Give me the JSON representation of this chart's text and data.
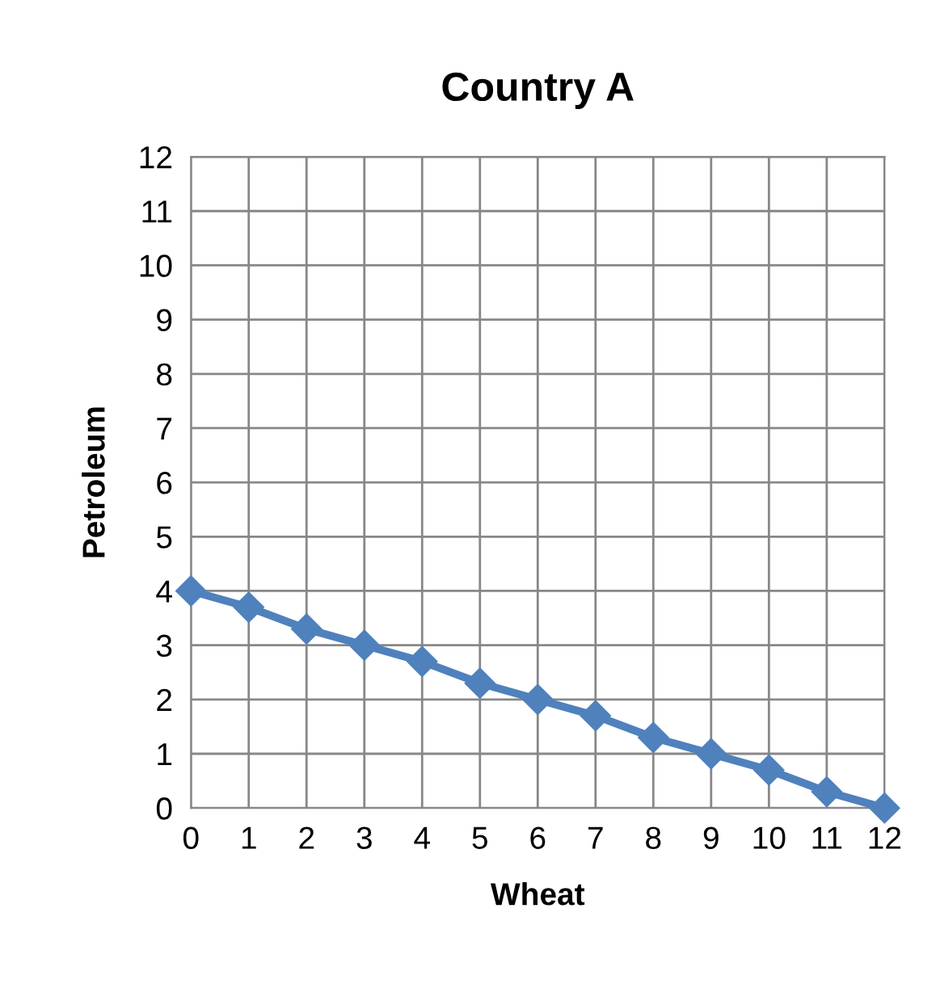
{
  "chart_data": {
    "type": "line",
    "title": "Country A",
    "xlabel": "Wheat",
    "ylabel": "Petroleum",
    "x": [
      0,
      1,
      2,
      3,
      4,
      5,
      6,
      7,
      8,
      9,
      10,
      11,
      12
    ],
    "series": [
      {
        "color": "#4f81bd",
        "values": [
          4,
          3.7,
          3.3,
          3,
          2.7,
          2.3,
          2,
          1.7,
          1.3,
          1,
          0.7,
          0.3,
          0
        ]
      }
    ],
    "xlim": [
      0,
      12
    ],
    "ylim": [
      0,
      12
    ],
    "xticks": [
      0,
      1,
      2,
      3,
      4,
      5,
      6,
      7,
      8,
      9,
      10,
      11,
      12
    ],
    "yticks": [
      0,
      1,
      2,
      3,
      4,
      5,
      6,
      7,
      8,
      9,
      10,
      11,
      12
    ],
    "grid": true,
    "legend": false,
    "marker": "diamond",
    "line_style": "solid"
  }
}
